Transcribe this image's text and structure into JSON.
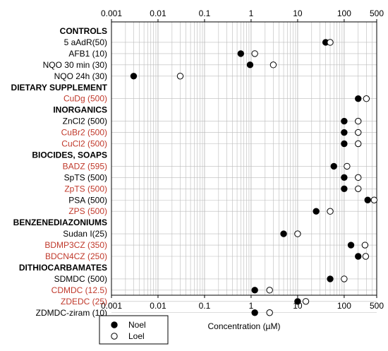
{
  "chart_data": {
    "type": "scatter",
    "x_scale": "log",
    "x_ticks": [
      "0.001",
      "0.01",
      "0.1",
      "1",
      "10",
      "100",
      "500"
    ],
    "x_tick_values": [
      0.001,
      0.01,
      0.1,
      1,
      10,
      100,
      500
    ],
    "xlim": [
      0.001,
      500
    ],
    "xlabel": "Concentration (µM)",
    "grid": true,
    "legend": {
      "placement": "bottom-left",
      "entries": [
        {
          "name": "Noel",
          "marker": "filled-circle"
        },
        {
          "name": "Loel",
          "marker": "open-circle"
        }
      ]
    },
    "colors": {
      "highlight_label": "#c0392b",
      "normal_label": "#000000",
      "grid": "#bbbbbb"
    },
    "rows": [
      {
        "label": "CONTROLS",
        "header": true
      },
      {
        "label": "5 aAdR(50)",
        "noel": 40,
        "loel": 50
      },
      {
        "label": "AFB1 (10)",
        "noel": 0.6,
        "loel": 1.2
      },
      {
        "label": "NQO 30 min (30)",
        "noel": 0.95,
        "loel": 3
      },
      {
        "label": "NQO 24h (30)",
        "noel": 0.003,
        "loel": 0.03
      },
      {
        "label": "DIETARY SUPPLEMENT",
        "header": true
      },
      {
        "label": "CuDg (500)",
        "noel": 200,
        "loel": 300,
        "highlight": true
      },
      {
        "label": "INORGANICS",
        "header": true
      },
      {
        "label": "ZnCl2 (500)",
        "noel": 100,
        "loel": 200
      },
      {
        "label": "CuBr2 (500)",
        "noel": 100,
        "loel": 200,
        "highlight": true
      },
      {
        "label": "CuCl2 (500)",
        "noel": 100,
        "loel": 200,
        "highlight": true
      },
      {
        "label": "BIOCIDES, SOAPS",
        "header": true
      },
      {
        "label": "BADZ (595)",
        "noel": 60,
        "loel": 115,
        "highlight": true
      },
      {
        "label": "SpTS (500)",
        "noel": 100,
        "loel": 200
      },
      {
        "label": "ZpTS (500)",
        "noel": 100,
        "loel": 200,
        "highlight": true
      },
      {
        "label": "PSA (500)",
        "noel": 320,
        "loel": 440
      },
      {
        "label": "ZPS (500)",
        "noel": 25,
        "loel": 50,
        "highlight": true
      },
      {
        "label": "BENZENEDIAZONIUMS",
        "header": true
      },
      {
        "label": "Sudan I(25)",
        "noel": 5,
        "loel": 10
      },
      {
        "label": "BDMP3CZ (350)",
        "noel": 140,
        "loel": 280,
        "highlight": true
      },
      {
        "label": "BDCN4CZ (250)",
        "noel": 200,
        "loel": 290,
        "highlight": true
      },
      {
        "label": "DITHIOCARBAMATES",
        "header": true
      },
      {
        "label": "SDMDC (500)",
        "noel": 50,
        "loel": 100
      },
      {
        "label": "CDMDC (12.5)",
        "noel": 1.2,
        "loel": 2.5,
        "highlight": true
      },
      {
        "label": "ZDEDC (25)",
        "noel": 10,
        "loel": 15,
        "highlight": true
      },
      {
        "label": "ZDMDC-ziram (10)",
        "noel": 1.2,
        "loel": 2.5
      }
    ]
  }
}
